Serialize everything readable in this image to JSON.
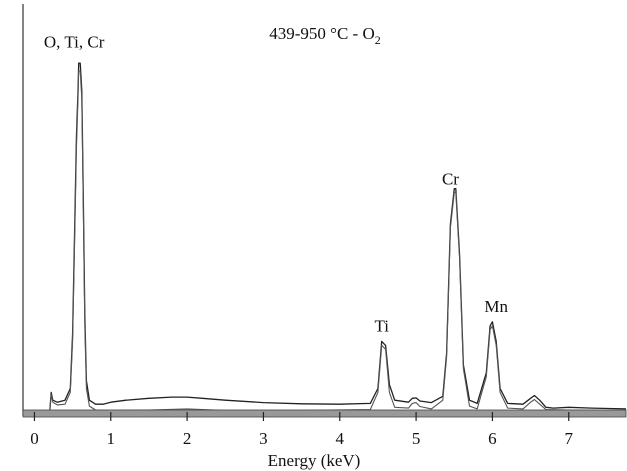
{
  "chart_data": {
    "type": "line",
    "title": "439-950 °C - O",
    "title_subscript": "2",
    "xlabel": "Energy (keV)",
    "ylabel": "",
    "xlim": [
      -0.15,
      7.75
    ],
    "ylim": [
      0,
      1.0
    ],
    "x_ticks": [
      0,
      1,
      2,
      3,
      4,
      5,
      6,
      7
    ],
    "x_tick_labels": [
      "0",
      "1",
      "2",
      "3",
      "4",
      "5",
      "6",
      "7"
    ],
    "grid": false,
    "legend": "none",
    "y_axis_ticks_shown": false,
    "peak_labels": [
      {
        "text": "O, Ti, Cr",
        "x": 0.52,
        "y": 0.93
      },
      {
        "text": "Ti",
        "x": 4.55,
        "y": 0.205
      },
      {
        "text": "Cr",
        "x": 5.45,
        "y": 0.58
      },
      {
        "text": "Mn",
        "x": 6.05,
        "y": 0.255
      }
    ],
    "series": [
      {
        "points": [
          [
            0.2,
            0.0
          ],
          [
            0.22,
            0.05
          ],
          [
            0.24,
            0.03
          ],
          [
            0.3,
            0.025
          ],
          [
            0.4,
            0.03
          ],
          [
            0.47,
            0.06
          ],
          [
            0.5,
            0.2
          ],
          [
            0.53,
            0.5
          ],
          [
            0.55,
            0.7
          ],
          [
            0.57,
            0.82
          ],
          [
            0.58,
            0.89
          ],
          [
            0.6,
            0.89
          ],
          [
            0.62,
            0.82
          ],
          [
            0.64,
            0.55
          ],
          [
            0.66,
            0.25
          ],
          [
            0.68,
            0.08
          ],
          [
            0.72,
            0.03
          ],
          [
            0.8,
            0.02
          ],
          [
            0.9,
            0.02
          ],
          [
            1.0,
            0.025
          ],
          [
            1.2,
            0.03
          ],
          [
            1.5,
            0.035
          ],
          [
            1.8,
            0.038
          ],
          [
            2.0,
            0.038
          ],
          [
            2.2,
            0.035
          ],
          [
            2.5,
            0.03
          ],
          [
            3.0,
            0.024
          ],
          [
            3.5,
            0.021
          ],
          [
            4.0,
            0.02
          ],
          [
            4.4,
            0.022
          ],
          [
            4.5,
            0.06
          ],
          [
            4.55,
            0.18
          ],
          [
            4.6,
            0.17
          ],
          [
            4.65,
            0.07
          ],
          [
            4.72,
            0.03
          ],
          [
            4.9,
            0.025
          ],
          [
            4.95,
            0.035
          ],
          [
            5.0,
            0.036
          ],
          [
            5.05,
            0.028
          ],
          [
            5.2,
            0.024
          ],
          [
            5.35,
            0.04
          ],
          [
            5.4,
            0.15
          ],
          [
            5.45,
            0.48
          ],
          [
            5.5,
            0.57
          ],
          [
            5.52,
            0.57
          ],
          [
            5.57,
            0.4
          ],
          [
            5.62,
            0.12
          ],
          [
            5.7,
            0.03
          ],
          [
            5.8,
            0.022
          ],
          [
            5.92,
            0.1
          ],
          [
            5.97,
            0.22
          ],
          [
            6.0,
            0.23
          ],
          [
            6.05,
            0.18
          ],
          [
            6.1,
            0.06
          ],
          [
            6.2,
            0.022
          ],
          [
            6.4,
            0.02
          ],
          [
            6.5,
            0.035
          ],
          [
            6.55,
            0.042
          ],
          [
            6.62,
            0.03
          ],
          [
            6.7,
            0.012
          ],
          [
            6.8,
            0.01
          ],
          [
            7.0,
            0.012
          ],
          [
            7.3,
            0.01
          ],
          [
            7.75,
            0.008
          ]
        ]
      },
      {
        "points": [
          [
            0.2,
            0.0
          ],
          [
            0.22,
            0.045
          ],
          [
            0.24,
            0.025
          ],
          [
            0.3,
            0.018
          ],
          [
            0.4,
            0.02
          ],
          [
            0.47,
            0.05
          ],
          [
            0.5,
            0.18
          ],
          [
            0.53,
            0.47
          ],
          [
            0.55,
            0.67
          ],
          [
            0.57,
            0.8
          ],
          [
            0.58,
            0.87
          ],
          [
            0.6,
            0.87
          ],
          [
            0.62,
            0.8
          ],
          [
            0.64,
            0.52
          ],
          [
            0.66,
            0.22
          ],
          [
            0.68,
            0.06
          ],
          [
            0.72,
            0.015
          ],
          [
            0.8,
            0.005
          ],
          [
            1.0,
            0.004
          ],
          [
            1.5,
            0.005
          ],
          [
            2.0,
            0.008
          ],
          [
            2.2,
            0.006
          ],
          [
            2.5,
            0.004
          ],
          [
            3.5,
            0.004
          ],
          [
            4.4,
            0.006
          ],
          [
            4.5,
            0.05
          ],
          [
            4.55,
            0.17
          ],
          [
            4.6,
            0.16
          ],
          [
            4.65,
            0.05
          ],
          [
            4.72,
            0.012
          ],
          [
            4.9,
            0.01
          ],
          [
            4.95,
            0.022
          ],
          [
            5.0,
            0.024
          ],
          [
            5.05,
            0.014
          ],
          [
            5.2,
            0.008
          ],
          [
            5.35,
            0.03
          ],
          [
            5.4,
            0.14
          ],
          [
            5.45,
            0.47
          ],
          [
            5.5,
            0.56
          ],
          [
            5.52,
            0.56
          ],
          [
            5.57,
            0.39
          ],
          [
            5.62,
            0.11
          ],
          [
            5.7,
            0.015
          ],
          [
            5.8,
            0.008
          ],
          [
            5.92,
            0.09
          ],
          [
            5.97,
            0.21
          ],
          [
            6.0,
            0.22
          ],
          [
            6.05,
            0.17
          ],
          [
            6.1,
            0.05
          ],
          [
            6.2,
            0.01
          ],
          [
            6.4,
            0.008
          ],
          [
            6.5,
            0.025
          ],
          [
            6.55,
            0.032
          ],
          [
            6.62,
            0.02
          ],
          [
            6.7,
            0.006
          ],
          [
            7.0,
            0.005
          ],
          [
            7.75,
            0.004
          ]
        ]
      }
    ]
  }
}
